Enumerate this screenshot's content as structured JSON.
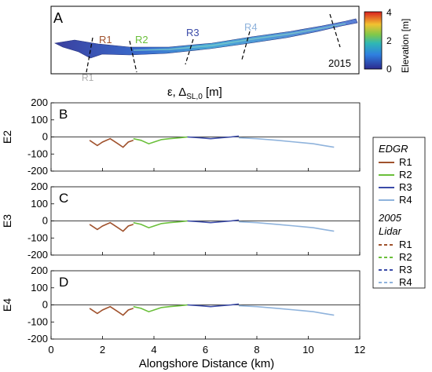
{
  "figure": {
    "panel_a": {
      "letter": "A",
      "year_label": "2015",
      "regions": [
        "R1",
        "R2",
        "R3",
        "R4"
      ],
      "region_colors": [
        "#a0522d",
        "#6abf3a",
        "#3b4ba8",
        "#8fb3dc"
      ],
      "colorbar": {
        "label": "Elevation [m]",
        "ticks": [
          "0",
          "2",
          "4"
        ],
        "range": [
          0,
          4
        ]
      },
      "partial_label": "R1"
    },
    "top_label": "ε, Δ_SL,0 [m]",
    "x_axis": {
      "label": "Alongshore Distance (km)",
      "ticks": [
        "0",
        "2",
        "4",
        "6",
        "8",
        "10",
        "12"
      ]
    },
    "y_ticks": [
      "200",
      "100",
      "0",
      "-100",
      "-200"
    ],
    "legend": {
      "group1_title": "EDGR",
      "group2_title_line1": "2005",
      "group2_title_line2": "Lidar",
      "items1": [
        "R1",
        "R2",
        "R3",
        "R4"
      ],
      "items2": [
        "R1",
        "R2",
        "R3",
        "R4"
      ]
    }
  },
  "chart_data": [
    {
      "type": "line",
      "panel": "B",
      "ylabel": "E2",
      "xlabel": "",
      "xlim": [
        0,
        12
      ],
      "ylim": [
        -200,
        200
      ],
      "grid": false,
      "legend_position": "right",
      "series": [
        {
          "name": "R1",
          "color": "#a0522d",
          "x": [
            1.5,
            1.8,
            2.0,
            2.3,
            2.6,
            2.8,
            3.0,
            3.2
          ],
          "y": [
            -20,
            -50,
            -30,
            -10,
            -40,
            -60,
            -30,
            -20
          ]
        },
        {
          "name": "R2",
          "color": "#6abf3a",
          "x": [
            3.2,
            3.5,
            3.8,
            4.0,
            4.3,
            4.6,
            5.0,
            5.3
          ],
          "y": [
            -10,
            -20,
            -40,
            -30,
            -15,
            -10,
            -5,
            0
          ]
        },
        {
          "name": "R3",
          "color": "#3b4ba8",
          "x": [
            5.3,
            5.8,
            6.2,
            6.6,
            7.0,
            7.3
          ],
          "y": [
            0,
            -5,
            -10,
            -5,
            0,
            5
          ]
        },
        {
          "name": "R4",
          "color": "#8fb3dc",
          "x": [
            7.3,
            8.0,
            8.8,
            9.5,
            10.2,
            10.6,
            11.0
          ],
          "y": [
            -5,
            -10,
            -20,
            -30,
            -40,
            -50,
            -60
          ]
        }
      ]
    },
    {
      "type": "line",
      "panel": "C",
      "ylabel": "E3",
      "xlabel": "",
      "xlim": [
        0,
        12
      ],
      "ylim": [
        -200,
        200
      ],
      "grid": false,
      "series": [
        {
          "name": "R1",
          "color": "#a0522d",
          "x": [
            1.5,
            1.8,
            2.0,
            2.3,
            2.6,
            2.8,
            3.0,
            3.2
          ],
          "y": [
            -20,
            -50,
            -30,
            -10,
            -40,
            -60,
            -30,
            -20
          ]
        },
        {
          "name": "R2",
          "color": "#6abf3a",
          "x": [
            3.2,
            3.5,
            3.8,
            4.0,
            4.3,
            4.6,
            5.0,
            5.3
          ],
          "y": [
            -10,
            -20,
            -40,
            -30,
            -15,
            -10,
            -5,
            0
          ]
        },
        {
          "name": "R3",
          "color": "#3b4ba8",
          "x": [
            5.3,
            5.8,
            6.2,
            6.6,
            7.0,
            7.3
          ],
          "y": [
            0,
            -5,
            -10,
            -5,
            0,
            5
          ]
        },
        {
          "name": "R4",
          "color": "#8fb3dc",
          "x": [
            7.3,
            8.0,
            8.8,
            9.5,
            10.2,
            10.6,
            11.0
          ],
          "y": [
            -5,
            -10,
            -20,
            -30,
            -40,
            -50,
            -60
          ]
        }
      ]
    },
    {
      "type": "line",
      "panel": "D",
      "ylabel": "E4",
      "xlabel": "Alongshore Distance (km)",
      "xlim": [
        0,
        12
      ],
      "ylim": [
        -200,
        200
      ],
      "grid": false,
      "series": [
        {
          "name": "R1",
          "color": "#a0522d",
          "x": [
            1.5,
            1.8,
            2.0,
            2.3,
            2.6,
            2.8,
            3.0,
            3.2
          ],
          "y": [
            -20,
            -50,
            -30,
            -10,
            -40,
            -60,
            -30,
            -20
          ]
        },
        {
          "name": "R2",
          "color": "#6abf3a",
          "x": [
            3.2,
            3.5,
            3.8,
            4.0,
            4.3,
            4.6,
            5.0,
            5.3
          ],
          "y": [
            -10,
            -20,
            -40,
            -30,
            -15,
            -10,
            -5,
            0
          ]
        },
        {
          "name": "R3",
          "color": "#3b4ba8",
          "x": [
            5.3,
            5.8,
            6.2,
            6.6,
            7.0,
            7.3
          ],
          "y": [
            0,
            -5,
            -10,
            -5,
            0,
            5
          ]
        },
        {
          "name": "R4",
          "color": "#8fb3dc",
          "x": [
            7.3,
            8.0,
            8.8,
            9.5,
            10.2,
            10.6,
            11.0
          ],
          "y": [
            -5,
            -10,
            -20,
            -30,
            -40,
            -50,
            -60
          ]
        }
      ]
    }
  ]
}
